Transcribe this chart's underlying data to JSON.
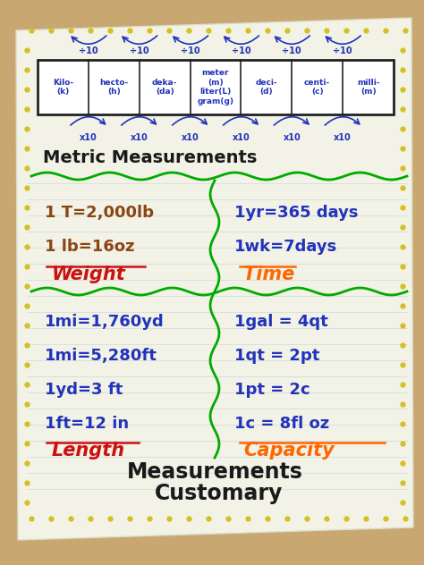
{
  "title_line1": "Customary",
  "title_line2": "Measurements",
  "title_color": "#1a1a1a",
  "bg_color": "#f0f0e0",
  "paper_color": "#f2f2e6",
  "table_bg": "#c8a870",
  "dot_color": "#d4c020",
  "length_header": "Length",
  "length_color": "#cc1111",
  "length_items": [
    "1ft=12 in",
    "1yd=3 ft",
    "1mi=5,280ft",
    "1mi=1,760yd"
  ],
  "length_item_color": "#2233bb",
  "capacity_header": "Capacity",
  "capacity_color": "#ff6600",
  "capacity_items": [
    "1c = 8fl oz",
    "1pt = 2c",
    "1qt = 2pt",
    "1gal = 4qt"
  ],
  "capacity_item_color": "#2233bb",
  "weight_header": "Weight",
  "weight_color": "#cc1111",
  "weight_items": [
    "1 lb=16oz",
    "1 T=2,000lb"
  ],
  "weight_item_color": "#8B4513",
  "time_header": "Time",
  "time_color": "#ff6600",
  "time_items": [
    "1wk=7days",
    "1yr=365 days"
  ],
  "time_item_color": "#2233bb",
  "metric_title": "Metric Measurements",
  "metric_color": "#1a1a1a",
  "metric_headers": [
    "Kilo-\n(k)",
    "hecto-\n(h)",
    "deka-\n(da)",
    "meter\n(m)\nliter(L)\ngram(g)",
    "deci-\n(d)",
    "centi-\n(c)",
    "milli-\n(m)"
  ],
  "divider_color": "#00aa00",
  "wavy_color": "#00aa00",
  "line_color": "#b8c8d8"
}
